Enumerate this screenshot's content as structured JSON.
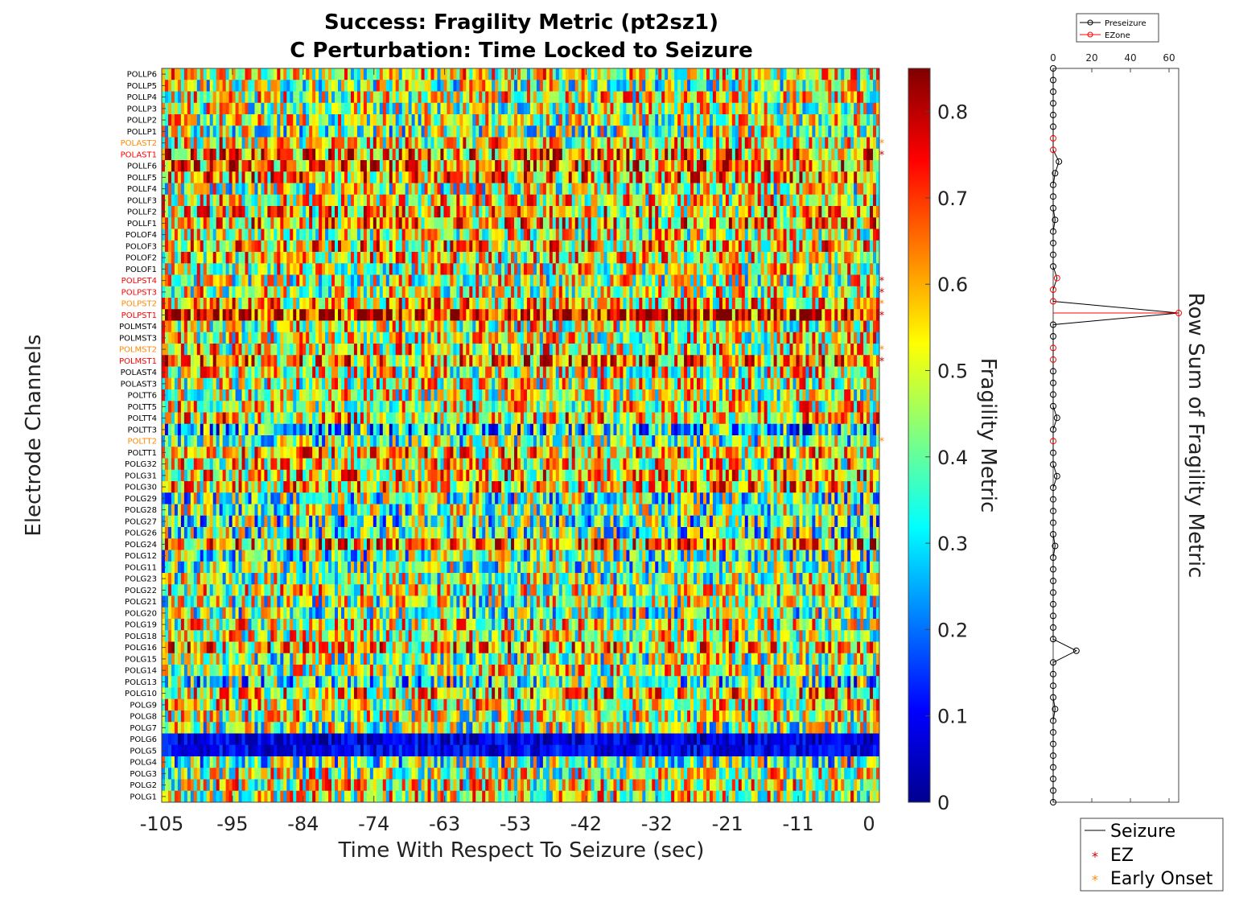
{
  "chart_data": [
    {
      "type": "heatmap",
      "title": "Success: Fragility Metric (pt2sz1)",
      "subtitle": "C Perturbation:  Time Locked to Seizure",
      "xlabel": "Time With Respect To Seizure (sec)",
      "ylabel": "Electrode Channels",
      "xticks": [
        "-105",
        "-95",
        "-84",
        "-74",
        "-63",
        "-53",
        "-42",
        "-32",
        "-21",
        "-11",
        "0"
      ],
      "channels": [
        "POLLP6",
        "POLLP5",
        "POLLP4",
        "POLLP3",
        "POLLP2",
        "POLLP1",
        "POLAST2",
        "POLAST1",
        "POLLF6",
        "POLLF5",
        "POLLF4",
        "POLLF3",
        "POLLF2",
        "POLLF1",
        "POLOF4",
        "POLOF3",
        "POLOF2",
        "POLOF1",
        "POLPST4",
        "POLPST3",
        "POLPST2",
        "POLPST1",
        "POLMST4",
        "POLMST3",
        "POLMST2",
        "POLMST1",
        "POLAST4",
        "POLAST3",
        "POLTT6",
        "POLTT5",
        "POLTT4",
        "POLTT3",
        "POLTT2",
        "POLTT1",
        "POLG32",
        "POLG31",
        "POLG30",
        "POLG29",
        "POLG28",
        "POLG27",
        "POLG26",
        "POLG24",
        "POLG12",
        "POLG11",
        "POLG23",
        "POLG22",
        "POLG21",
        "POLG20",
        "POLG19",
        "POLG18",
        "POLG16",
        "POLG15",
        "POLG14",
        "POLG13",
        "POLG10",
        "POLG9",
        "POLG8",
        "POLG7",
        "POLG6",
        "POLG5",
        "POLG4",
        "POLG3",
        "POLG2",
        "POLG1"
      ],
      "channel_mean_fragility": [
        0.5,
        0.45,
        0.5,
        0.48,
        0.47,
        0.44,
        0.52,
        0.62,
        0.62,
        0.58,
        0.46,
        0.52,
        0.55,
        0.58,
        0.5,
        0.55,
        0.52,
        0.5,
        0.47,
        0.5,
        0.55,
        0.75,
        0.5,
        0.5,
        0.52,
        0.6,
        0.5,
        0.5,
        0.48,
        0.52,
        0.55,
        0.3,
        0.42,
        0.55,
        0.52,
        0.55,
        0.55,
        0.4,
        0.42,
        0.38,
        0.4,
        0.6,
        0.4,
        0.4,
        0.45,
        0.5,
        0.45,
        0.42,
        0.5,
        0.5,
        0.58,
        0.45,
        0.48,
        0.35,
        0.55,
        0.5,
        0.48,
        0.45,
        0.08,
        0.1,
        0.4,
        0.48,
        0.5,
        0.5
      ],
      "ez_channels": [
        "POLAST1",
        "POLPST4",
        "POLPST3",
        "POLPST1",
        "POLMST1"
      ],
      "early_onset_channels": [
        "POLAST2",
        "POLPST2",
        "POLMST2",
        "POLTT2"
      ]
    },
    {
      "type": "colorbar",
      "label": "Fragility Metric",
      "ticks": [
        "0",
        "0.1",
        "0.2",
        "0.3",
        "0.4",
        "0.5",
        "0.6",
        "0.7",
        "0.8"
      ],
      "range": [
        0,
        0.85
      ],
      "colormap": "jet"
    },
    {
      "type": "scatter",
      "ylabel": "Row Sum of Fragility Metric",
      "xticks": [
        "0",
        "20",
        "40",
        "60"
      ],
      "xlim": [
        0,
        65
      ],
      "series": [
        {
          "name": "Preseizure",
          "color": "#000000"
        },
        {
          "name": "EZone",
          "color": "#ff0000"
        }
      ],
      "row_sums": [
        0,
        0,
        0,
        0,
        0,
        0,
        0,
        0,
        3,
        1,
        0,
        0,
        0,
        1,
        0,
        0,
        0,
        0,
        2,
        0,
        0,
        65,
        0,
        0,
        0,
        0,
        0,
        0,
        0,
        0,
        2,
        0,
        0,
        0,
        0,
        2,
        0,
        0,
        0,
        0,
        0,
        1,
        0,
        0,
        0,
        0,
        0,
        0,
        0,
        0,
        12,
        0,
        0,
        0,
        0,
        1,
        0,
        0,
        0,
        0,
        0,
        0,
        0,
        0
      ]
    }
  ],
  "legend_small": [
    "Preseizure",
    "EZone"
  ],
  "legend_big": [
    "Seizure",
    "EZ",
    "Early Onset"
  ],
  "colors": {
    "ez": "#cc0000",
    "early_onset": "#ff8800",
    "label_default": "#000000",
    "label_ez": "#ff0000",
    "label_early": "#ff8800"
  }
}
